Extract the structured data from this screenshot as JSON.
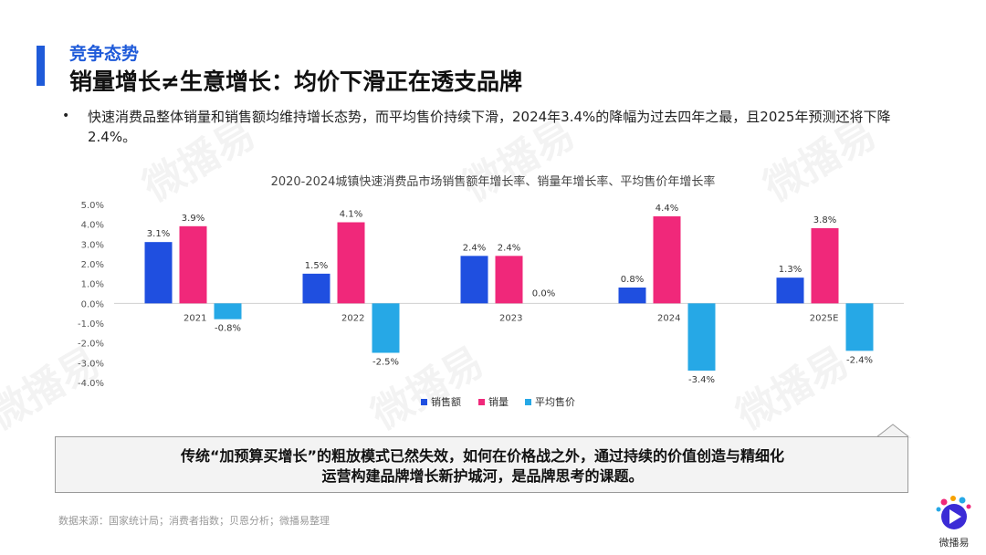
{
  "header": {
    "section_tag": "竞争态势",
    "title": "销量增长≠生意增长：均价下滑正在透支品牌"
  },
  "bullet": {
    "marker": "•",
    "text": "快速消费品整体销量和销售额均维持增长态势，而平均售价持续下滑，2024年3.4%的降幅为过去四年之最，且2025年预测还将下降2.4%。"
  },
  "chart_data": {
    "type": "bar",
    "title": "2020-2024城镇快速消费品市场销售额年增长率、销量年增长率、平均售价年增长率",
    "categories": [
      "2021",
      "2022",
      "2023",
      "2024",
      "2025E"
    ],
    "series": [
      {
        "name": "销售额",
        "color": "#1f4fe0",
        "values": [
          3.1,
          1.5,
          2.4,
          0.8,
          1.3
        ],
        "labels": [
          "3.1%",
          "1.5%",
          "2.4%",
          "0.8%",
          "1.3%"
        ]
      },
      {
        "name": "销量",
        "color": "#f0287a",
        "values": [
          3.9,
          4.1,
          2.4,
          4.4,
          3.8
        ],
        "labels": [
          "3.9%",
          "4.1%",
          "2.4%",
          "4.4%",
          "3.8%"
        ]
      },
      {
        "name": "平均售价",
        "color": "#26a8e6",
        "values": [
          -0.8,
          -2.5,
          0.0,
          -3.4,
          -2.4
        ],
        "labels": [
          "-0.8%",
          "-2.5%",
          "0.0%",
          "-3.4%",
          "-2.4%"
        ]
      }
    ],
    "ylim": [
      -4.0,
      5.0
    ],
    "yticks": [
      5.0,
      4.0,
      3.0,
      2.0,
      1.0,
      0.0,
      -1.0,
      -2.0,
      -3.0,
      -4.0
    ],
    "ytick_labels": [
      "5.0%",
      "4.0%",
      "3.0%",
      "2.0%",
      "1.0%",
      "0.0%",
      "-1.0%",
      "-2.0%",
      "-3.0%",
      "-4.0%"
    ],
    "legend_position": "bottom-center",
    "grid": false
  },
  "callout": {
    "line1": "传统“加预算买增长”的粗放模式已然失效，如何在价格战之外，通过持续的价值创造与精细化",
    "line2": "运营构建品牌增长新护城河，是品牌思考的课题。"
  },
  "footer": {
    "source": "数据来源：国家统计局；消费者指数；贝恩分析；微播易整理",
    "brand_name": "微播易"
  },
  "watermark": {
    "text": "微播易"
  }
}
